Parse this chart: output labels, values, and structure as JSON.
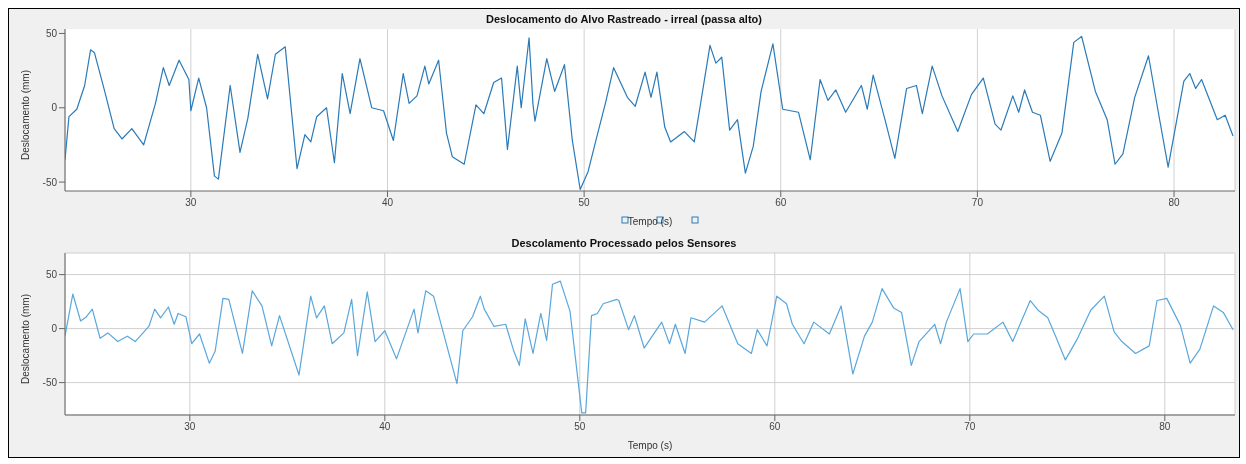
{
  "chart_data": [
    {
      "type": "line",
      "title": "Deslocamento do Alvo Rastreado - irreal (passa alto)",
      "xlabel": "Tempo (s)",
      "ylabel": "Deslocamento (mm)",
      "xlim": [
        23.6,
        83.1
      ],
      "xticks": [
        30,
        40,
        50,
        60,
        70,
        80
      ],
      "ylim": [
        -56,
        53
      ],
      "yticks": [
        -50,
        0,
        50
      ],
      "grid": "x",
      "color": "#2a7ab8",
      "x": [
        23.6,
        23.8,
        24.2,
        24.6,
        24.9,
        25.1,
        25.6,
        26.1,
        26.5,
        27.0,
        27.6,
        28.2,
        28.6,
        28.9,
        29.4,
        29.9,
        30.0,
        30.4,
        30.8,
        31.2,
        31.4,
        32.0,
        32.5,
        32.9,
        33.4,
        33.9,
        34.3,
        34.8,
        35.4,
        35.8,
        36.1,
        36.4,
        36.9,
        37.3,
        37.7,
        38.1,
        38.6,
        39.2,
        39.8,
        40.3,
        40.8,
        41.1,
        41.5,
        41.9,
        42.1,
        42.6,
        43.0,
        43.3,
        43.9,
        44.5,
        44.9,
        45.4,
        45.8,
        46.1,
        46.6,
        46.8,
        47.2,
        47.4,
        47.5,
        48.1,
        48.5,
        49.0,
        49.4,
        49.8,
        50.2,
        50.6,
        51.1,
        51.5,
        52.2,
        52.6,
        53.1,
        53.4,
        53.7,
        54.1,
        54.4,
        55.1,
        55.6,
        55.9,
        56.4,
        56.7,
        57.0,
        57.4,
        57.8,
        58.2,
        58.6,
        59.0,
        59.6,
        60.1,
        60.9,
        61.5,
        62.0,
        62.4,
        62.8,
        63.3,
        64.1,
        64.4,
        64.7,
        65.3,
        65.8,
        66.4,
        66.9,
        67.2,
        67.7,
        68.2,
        69.0,
        69.7,
        70.3,
        70.9,
        71.2,
        71.8,
        72.1,
        72.4,
        72.8,
        73.2,
        73.7,
        74.3,
        74.9,
        75.3,
        76.0,
        76.6,
        77.0,
        77.4,
        78.0,
        78.7,
        79.2,
        79.7,
        80.5,
        80.8,
        81.1,
        81.4,
        82.2,
        82.6,
        83.0
      ],
      "values": [
        -35,
        -6,
        -1,
        15,
        39,
        37,
        12,
        -14,
        -21,
        -14,
        -25,
        3,
        27,
        15,
        32,
        19,
        -2,
        20,
        0,
        -46,
        -48,
        15,
        -30,
        -7,
        36,
        6,
        36,
        41,
        -41,
        -18,
        -23,
        -6,
        0,
        -37,
        23,
        -4,
        33,
        0,
        -2,
        -22,
        23,
        3,
        8,
        28,
        16,
        32,
        -17,
        -33,
        -38,
        2,
        -4,
        17,
        20,
        -28,
        28,
        0,
        47,
        2,
        -9,
        33,
        11,
        29,
        -22,
        -55,
        -43,
        -22,
        4,
        27,
        7,
        1,
        24,
        7,
        24,
        -13,
        -23,
        -16,
        -23,
        1,
        42,
        30,
        34,
        -15,
        -8,
        -44,
        -26,
        11,
        43,
        -1,
        -3,
        -35,
        19,
        5,
        12,
        -3,
        15,
        -1,
        22,
        -8,
        -34,
        13,
        15,
        -4,
        28,
        8,
        -16,
        9,
        20,
        -11,
        -15,
        8,
        -3,
        12,
        -3,
        -5,
        -36,
        -17,
        44,
        48,
        11,
        -8,
        -38,
        -31,
        7,
        35,
        -3,
        -40,
        18,
        23,
        13,
        19,
        -8,
        -5,
        -19
      ]
    },
    {
      "type": "line",
      "title": "Descolamento Processado pelos Sensores",
      "xlabel": "Tempo (s)",
      "ylabel": "Deslocamento (mm)",
      "xlim": [
        23.6,
        83.6
      ],
      "xticks": [
        30,
        40,
        50,
        60,
        70,
        80
      ],
      "ylim": [
        -80,
        70
      ],
      "yticks": [
        -50,
        0,
        50
      ],
      "grid": true,
      "color": "#5aa7dc",
      "x": [
        23.6,
        24.0,
        24.4,
        24.7,
        25.0,
        25.4,
        25.8,
        26.3,
        26.8,
        27.2,
        27.9,
        28.2,
        28.5,
        28.9,
        29.2,
        29.4,
        29.8,
        30.1,
        30.5,
        31.0,
        31.3,
        31.7,
        32.0,
        32.7,
        33.2,
        33.7,
        34.2,
        34.6,
        35.6,
        36.2,
        36.5,
        36.9,
        37.3,
        37.9,
        38.3,
        38.6,
        39.1,
        39.5,
        40.0,
        40.6,
        41.5,
        41.7,
        42.1,
        42.5,
        43.7,
        44.0,
        44.5,
        44.9,
        45.1,
        45.6,
        46.2,
        46.6,
        46.9,
        47.2,
        47.6,
        48.0,
        48.3,
        48.6,
        49.0,
        49.5,
        50.1,
        50.3,
        50.6,
        50.9,
        51.2,
        51.9,
        52.0,
        52.5,
        52.8,
        53.3,
        54.2,
        54.6,
        54.9,
        55.4,
        55.7,
        56.4,
        57.3,
        58.1,
        58.8,
        59.1,
        59.6,
        60.1,
        60.6,
        60.9,
        61.5,
        62.0,
        62.8,
        63.4,
        64.0,
        64.6,
        65.0,
        65.5,
        66.1,
        66.5,
        67.0,
        67.4,
        68.2,
        68.5,
        68.8,
        69.5,
        69.9,
        70.2,
        70.9,
        71.7,
        72.2,
        73.1,
        73.5,
        74.0,
        74.4,
        74.9,
        75.5,
        76.2,
        76.9,
        77.4,
        77.8,
        78.5,
        79.2,
        79.6,
        80.1,
        80.8,
        81.3,
        81.8,
        82.5,
        83.0,
        83.5
      ],
      "values": [
        -7,
        32,
        7,
        11,
        18,
        -9,
        -4,
        -12,
        -7,
        -12,
        2,
        18,
        10,
        20,
        4,
        14,
        11,
        -14,
        -5,
        -32,
        -21,
        28,
        27,
        -23,
        35,
        21,
        -16,
        12,
        -43,
        30,
        10,
        21,
        -14,
        -4,
        27,
        -25,
        34,
        -12,
        -2,
        -28,
        18,
        -4,
        35,
        30,
        -51,
        -2,
        11,
        30,
        18,
        2,
        4,
        -20,
        -34,
        9,
        -23,
        14,
        -11,
        41,
        44,
        16,
        -78,
        -78,
        12,
        14,
        23,
        27,
        26,
        -1,
        12,
        -18,
        6,
        -14,
        4,
        -23,
        10,
        6,
        21,
        -14,
        -23,
        -1,
        -16,
        30,
        23,
        4,
        -14,
        6,
        -5,
        21,
        -42,
        -7,
        6,
        37,
        19,
        15,
        -34,
        -12,
        4,
        -14,
        6,
        37,
        -12,
        -5,
        -5,
        6,
        -12,
        26,
        17,
        10,
        -7,
        -29,
        -10,
        17,
        30,
        -3,
        -12,
        -23,
        -16,
        26,
        28,
        3,
        -32,
        -19,
        21,
        15,
        -1
      ]
    }
  ]
}
